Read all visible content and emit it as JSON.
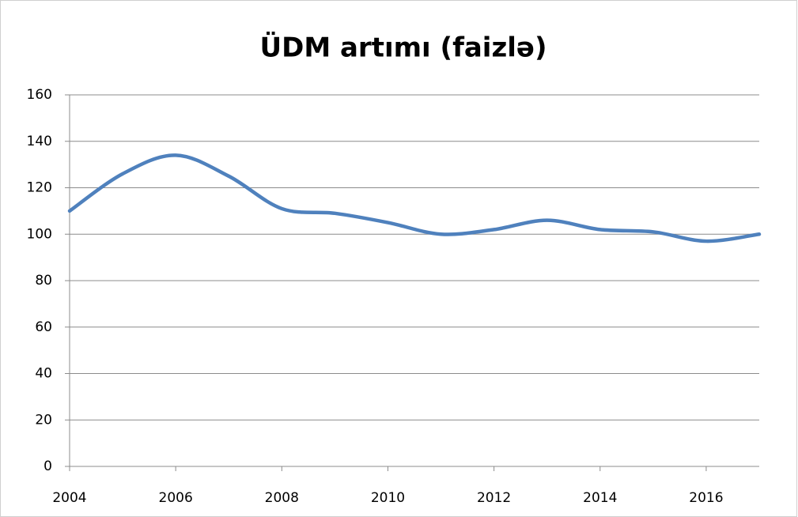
{
  "chart_data": {
    "type": "line",
    "title": "ÜDM artımı (faizlə)",
    "x": [
      2004,
      2005,
      2006,
      2007,
      2008,
      2009,
      2010,
      2011,
      2012,
      2013,
      2014,
      2015,
      2016,
      2017
    ],
    "series": [
      {
        "name": "ÜDM artımı",
        "color": "#4f81bd",
        "values": [
          110,
          126,
          134,
          125,
          111,
          109,
          105,
          100,
          102,
          106,
          102,
          101,
          97,
          100
        ]
      }
    ],
    "xlim": [
      2004,
      2017
    ],
    "xticks": [
      2004,
      2006,
      2008,
      2010,
      2012,
      2014,
      2016
    ],
    "ylim": [
      0,
      160
    ],
    "yticks": [
      0,
      20,
      40,
      60,
      80,
      100,
      120,
      140,
      160
    ],
    "grid": true,
    "smooth": true
  }
}
